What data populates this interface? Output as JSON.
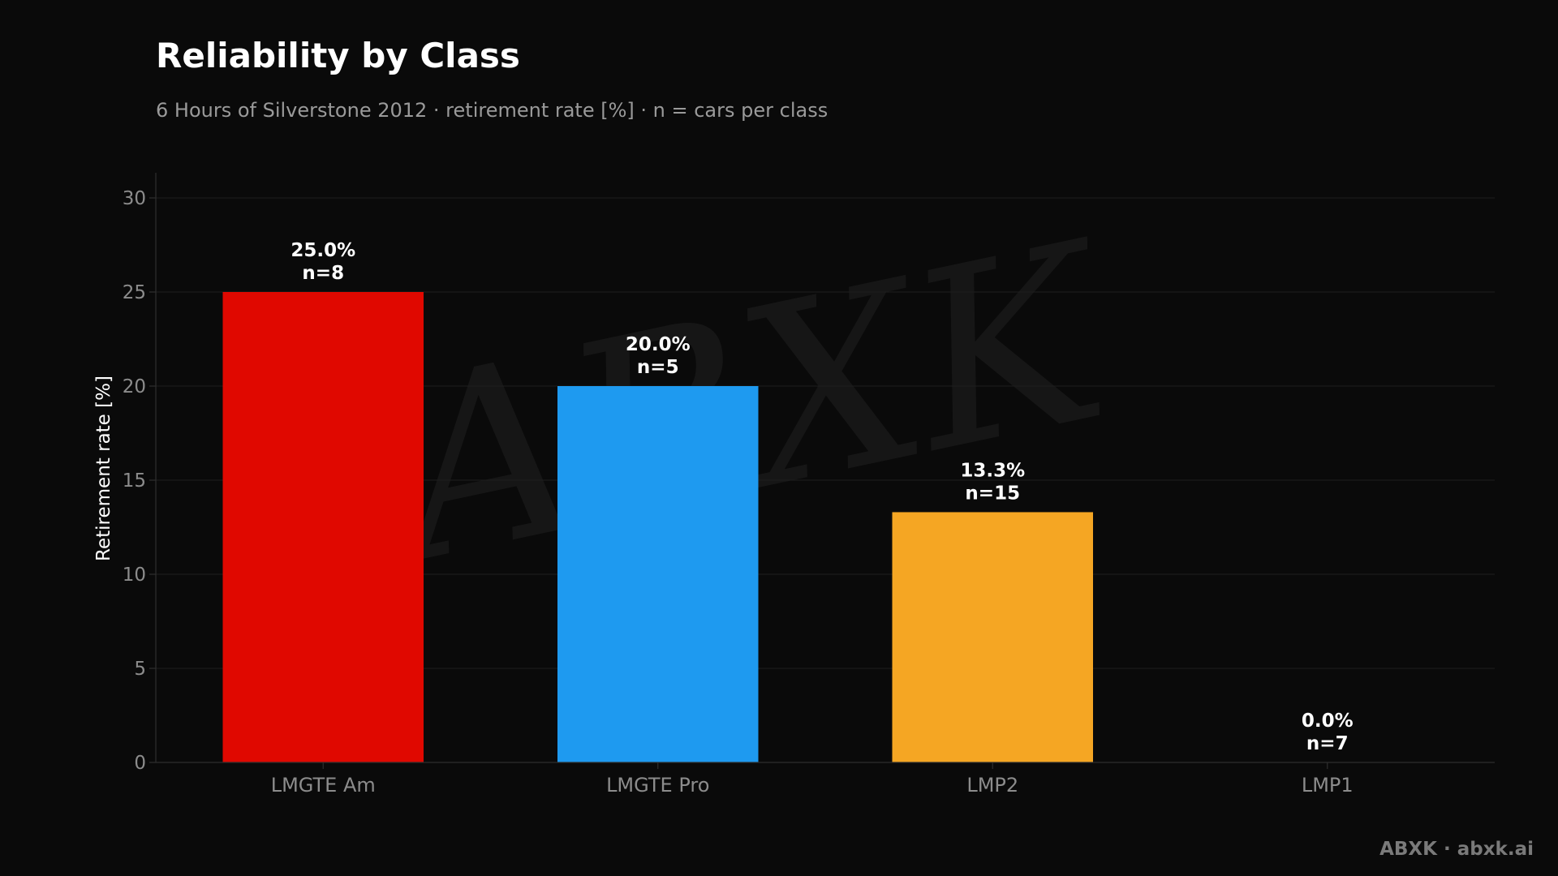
{
  "title": "Reliability by Class",
  "subtitle": "6 Hours of Silverstone 2012 · retirement rate [%] · n = cars per class",
  "brand": "ABXK · abxk.ai",
  "watermark": "ABXK",
  "colors": {
    "background": "#0a0a0a",
    "grid": "#1e1e1e",
    "axis": "#2e2e2e",
    "tick_text": "#8c8c8c",
    "label_text": "#ffffff"
  },
  "chart_data": {
    "type": "bar",
    "title": "Reliability by Class",
    "subtitle": "6 Hours of Silverstone 2012 · retirement rate [%] · n = cars per class",
    "xlabel": "",
    "ylabel": "Retirement rate [%]",
    "ylim": [
      0,
      31.25
    ],
    "yticks": [
      0,
      5,
      10,
      15,
      20,
      25,
      30
    ],
    "grid": true,
    "categories": [
      "LMGTE Am",
      "LMGTE Pro",
      "LMP2",
      "LMP1"
    ],
    "values": [
      25.0,
      20.0,
      13.3,
      0.0
    ],
    "value_labels": [
      "25.0%",
      "20.0%",
      "13.3%",
      "0.0%"
    ],
    "n_labels": [
      "n=8",
      "n=5",
      "n=15",
      "n=7"
    ],
    "bar_colors": [
      "#e00800",
      "#1e9af0",
      "#f5a623",
      "#2a2a2a"
    ]
  }
}
